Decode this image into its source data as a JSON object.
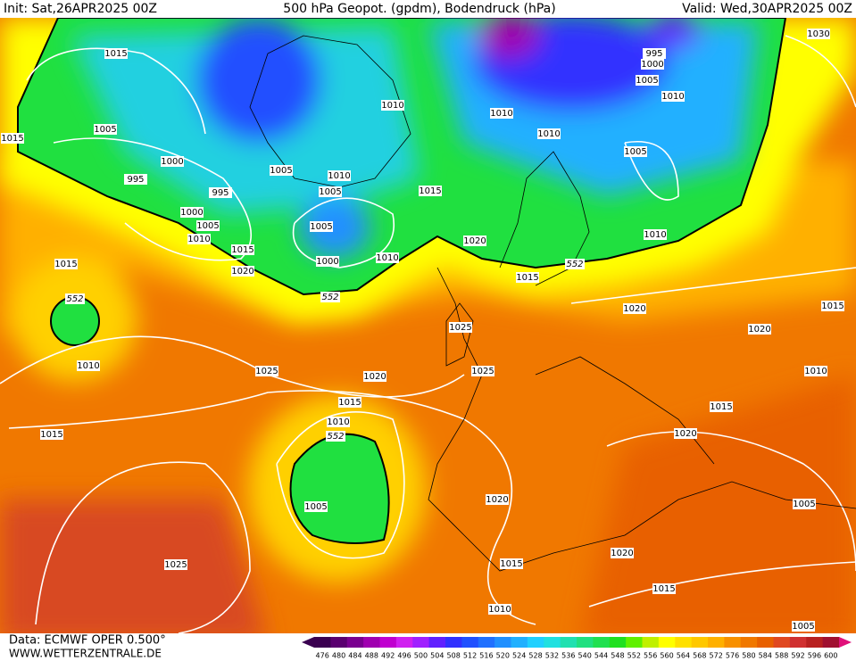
{
  "header": {
    "init": "Init: Sat,26APR2025 00Z",
    "title": "500 hPa Geopot. (gpdm), Bodendruck (hPa)",
    "valid": "Valid: Wed,30APR2025 00Z"
  },
  "isobar_labels": [
    1015,
    1005,
    1000,
    995,
    995,
    1000,
    1005,
    1010,
    1005,
    1005,
    1010,
    1010,
    1015,
    1000,
    1010,
    1015,
    1020,
    1015,
    1015,
    1010,
    1025,
    1020,
    1015,
    1010,
    1005,
    1015,
    1025,
    1010,
    1010,
    1020,
    1015,
    1005,
    1010,
    1005,
    995,
    1000,
    1010,
    1030,
    1020,
    1025,
    1025,
    1020,
    1015,
    1010,
    1015,
    1020,
    1020,
    1020,
    1015,
    1015,
    1010,
    1005,
    1005,
    1005
  ],
  "geopotential_labels": [
    552,
    552,
    552,
    552
  ],
  "colorbar": {
    "levels": [
      476,
      480,
      484,
      488,
      492,
      496,
      500,
      504,
      508,
      512,
      516,
      520,
      524,
      528,
      532,
      536,
      540,
      544,
      548,
      552,
      556,
      560,
      564,
      568,
      572,
      576,
      580,
      584,
      588,
      592,
      596,
      600
    ],
    "colors": [
      "#3a0050",
      "#5a0070",
      "#7a0090",
      "#a000b0",
      "#c000d0",
      "#d020f0",
      "#a020ff",
      "#6020ff",
      "#3030ff",
      "#2050ff",
      "#2070ff",
      "#2090ff",
      "#20b0ff",
      "#20d0ff",
      "#20e0e0",
      "#20e0b0",
      "#20e080",
      "#20e050",
      "#20e020",
      "#60f000",
      "#c0f000",
      "#ffff00",
      "#ffe000",
      "#ffc800",
      "#ffb000",
      "#f89000",
      "#f07800",
      "#e86000",
      "#e04820",
      "#d03030",
      "#b82020",
      "#a01030"
    ]
  },
  "footer": {
    "data": "Data: ECMWF OPER 0.500°",
    "source": "WWW.WETTERZENTRALE.DE"
  }
}
